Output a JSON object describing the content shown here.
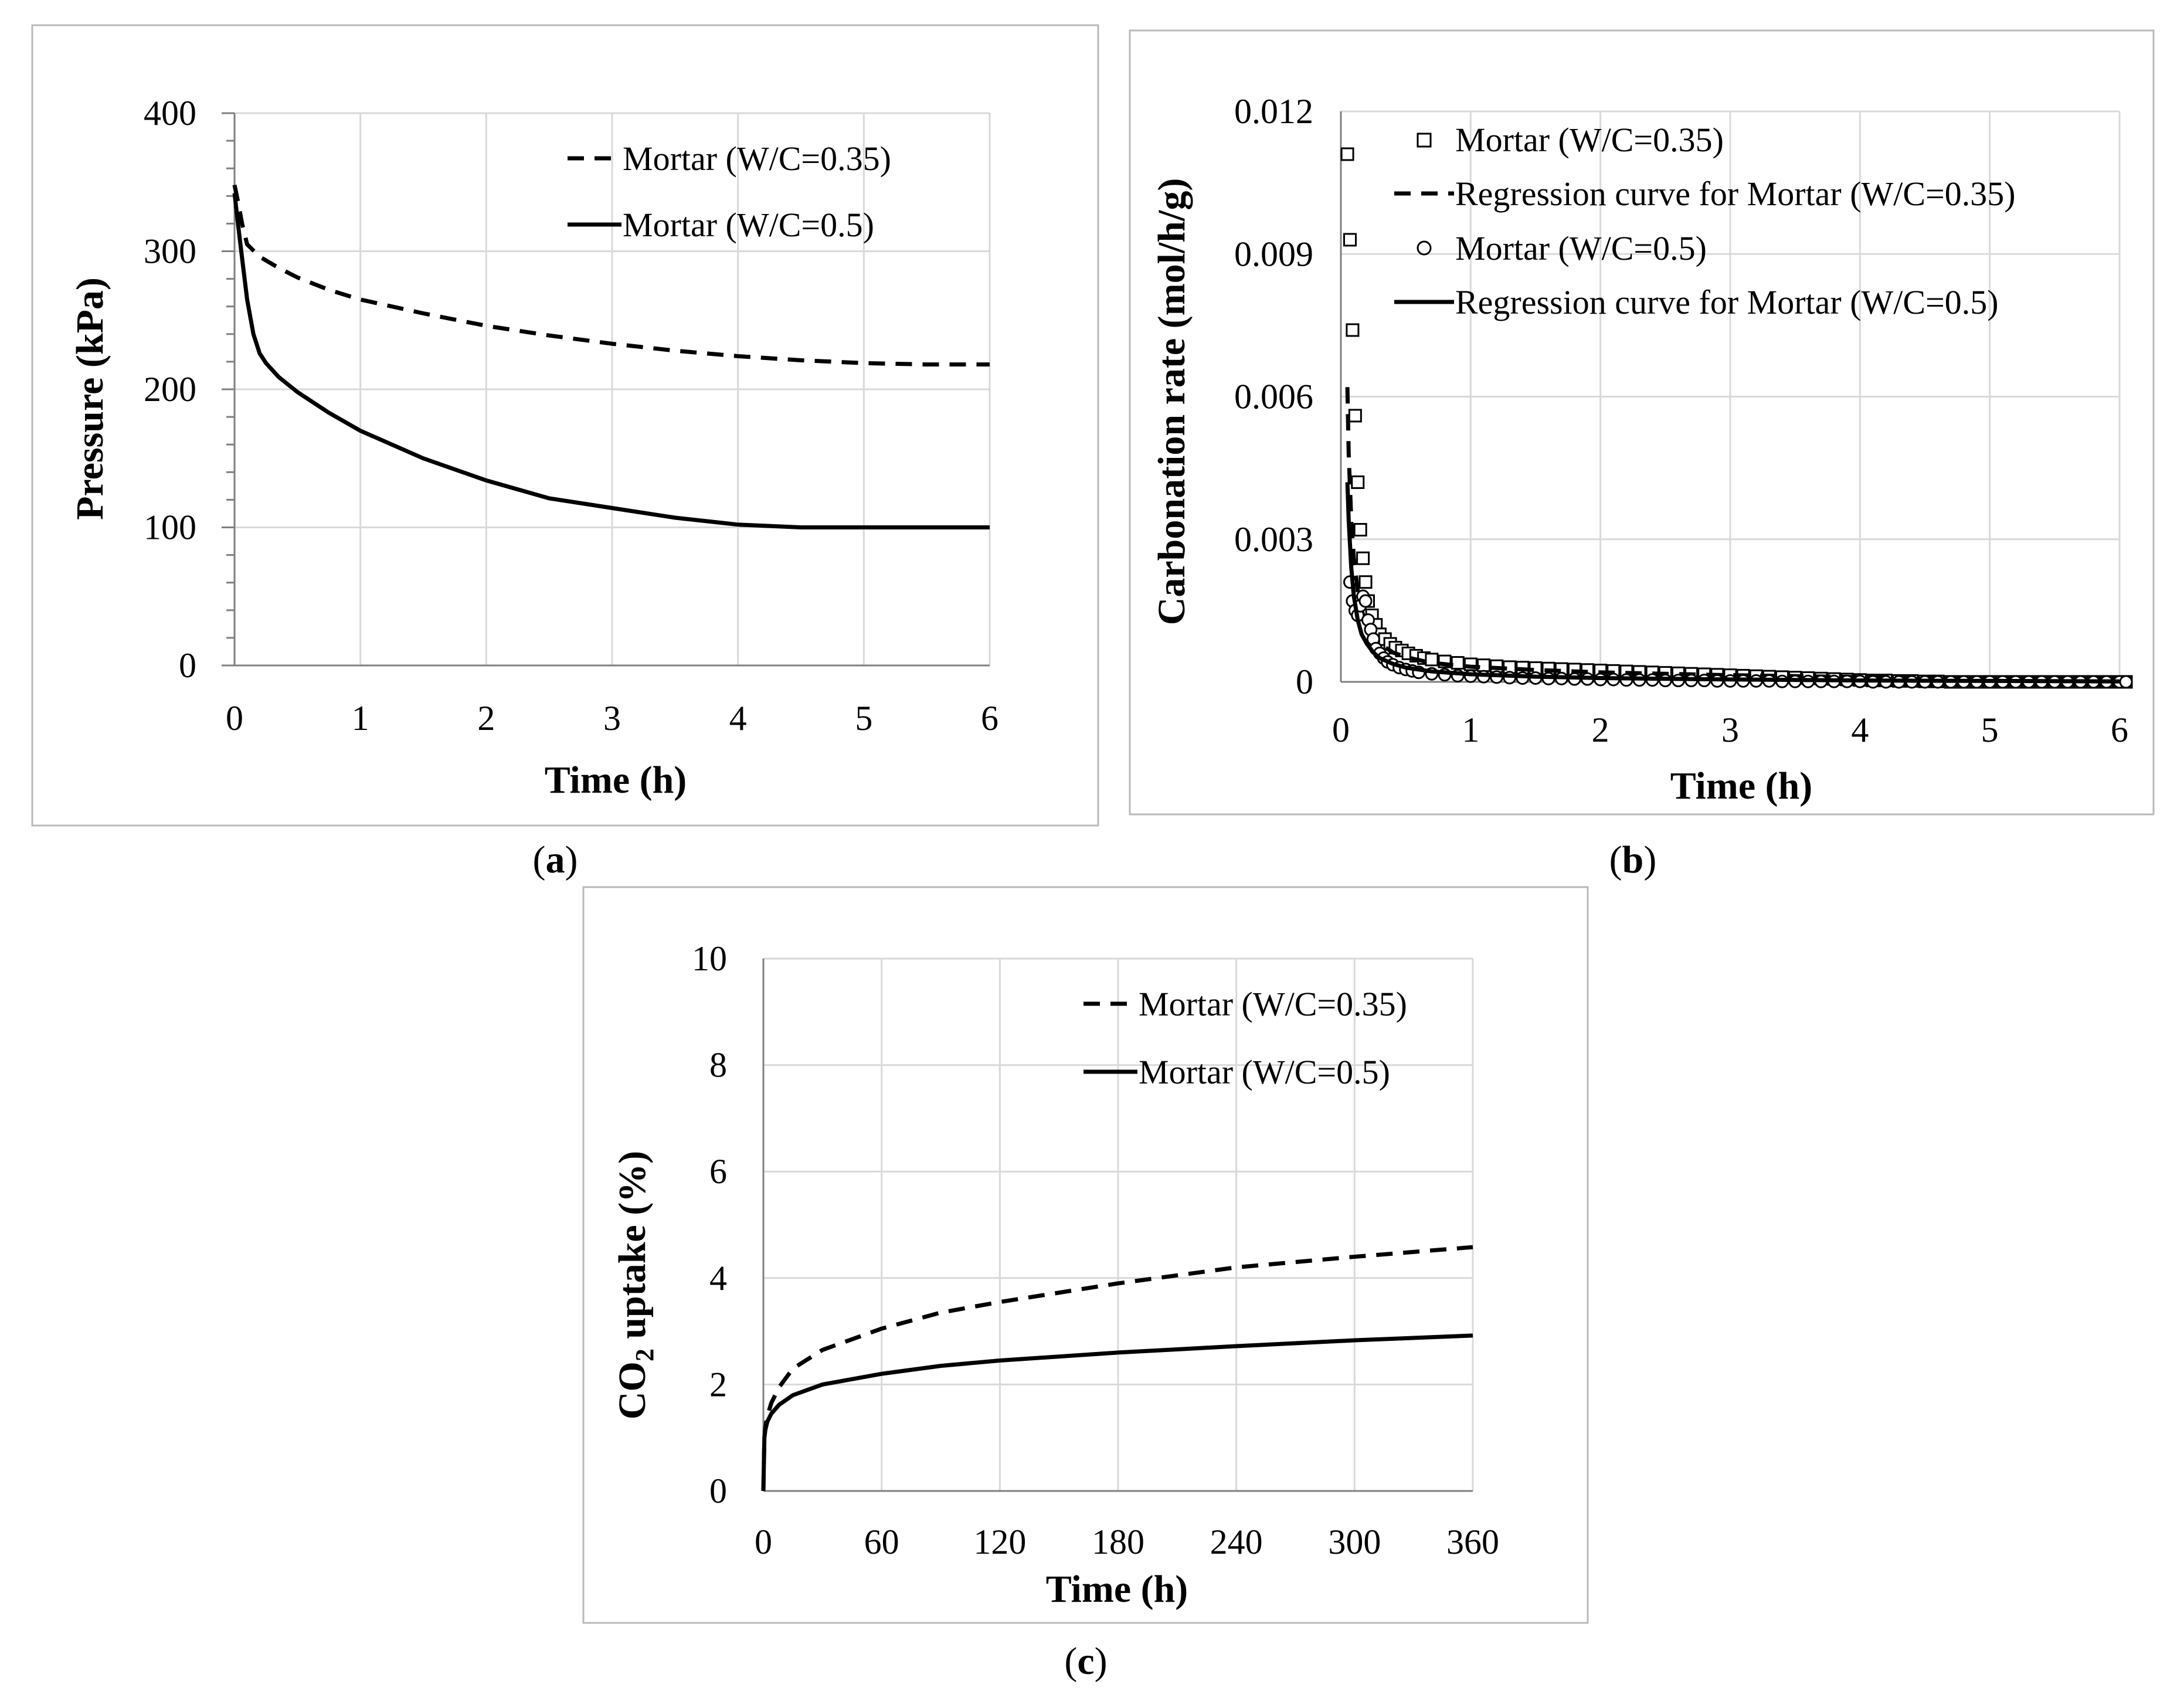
{
  "figure": {
    "captions": [
      {
        "open": "(",
        "letter": "a",
        "close": ")"
      },
      {
        "open": "(",
        "letter": "b",
        "close": ")"
      },
      {
        "open": "(",
        "letter": "c",
        "close": ")"
      }
    ]
  },
  "chart_data": [
    {
      "id": "a",
      "type": "line",
      "title": "",
      "xlabel": "Time (h)",
      "ylabel": "Pressure (kPa)",
      "xlim": [
        0,
        6
      ],
      "ylim": [
        0,
        400
      ],
      "xticks": [
        0,
        1,
        2,
        3,
        4,
        5,
        6
      ],
      "yticks": [
        0,
        100,
        200,
        300,
        400
      ],
      "grid": true,
      "legend_position": "top-right",
      "series": [
        {
          "name": "Mortar (W/C=0.35)",
          "style": "dashed",
          "x": [
            0,
            0.03,
            0.06,
            0.1,
            0.2,
            0.35,
            0.5,
            0.75,
            1,
            1.5,
            2,
            2.5,
            3,
            3.5,
            4,
            4.5,
            5,
            5.5,
            6
          ],
          "y": [
            348,
            335,
            320,
            305,
            296,
            288,
            281,
            272,
            265,
            255,
            246,
            239,
            233,
            228,
            224,
            221,
            219,
            218,
            218
          ]
        },
        {
          "name": "Mortar (W/C=0.5)",
          "style": "solid",
          "x": [
            0,
            0.03,
            0.06,
            0.1,
            0.15,
            0.2,
            0.25,
            0.35,
            0.5,
            0.75,
            1,
            1.5,
            2,
            2.5,
            3,
            3.5,
            4,
            4.5,
            4.8,
            5,
            5.5,
            6
          ],
          "y": [
            342,
            318,
            295,
            265,
            240,
            226,
            219,
            209,
            198,
            183,
            170,
            150,
            134,
            121,
            114,
            107,
            102,
            100,
            100,
            100,
            100,
            100
          ]
        }
      ]
    },
    {
      "id": "b",
      "type": "scatter",
      "title": "",
      "xlabel": "Time (h)",
      "ylabel": "Carbonation rate (mol/h/g)",
      "xlim": [
        0,
        6
      ],
      "ylim": [
        0,
        0.012
      ],
      "xticks": [
        0,
        1,
        2,
        3,
        4,
        5,
        6
      ],
      "yticks": [
        "0",
        "0.003",
        "0.006",
        "0.009",
        "0.012"
      ],
      "grid": true,
      "legend_position": "top-right",
      "series": [
        {
          "name": "Mortar (W/C=0.35)",
          "kind": "markers",
          "marker": "square",
          "x": [
            0.05,
            0.07,
            0.09,
            0.11,
            0.13,
            0.15,
            0.17,
            0.19,
            0.21,
            0.24,
            0.27,
            0.3,
            0.34,
            0.38,
            0.42,
            0.47,
            0.52,
            0.58,
            0.64,
            0.7,
            0.8,
            0.9,
            1,
            1.1,
            1.2,
            1.3,
            1.4,
            1.5,
            1.6,
            1.7,
            1.8,
            1.9,
            2,
            2.1,
            2.2,
            2.3,
            2.4,
            2.5,
            2.6,
            2.7,
            2.8,
            2.9,
            3,
            3.1,
            3.2,
            3.3,
            3.4,
            3.5,
            3.6,
            3.7,
            3.8,
            3.9,
            4,
            4.1,
            4.2,
            4.3,
            4.4,
            4.5,
            4.6,
            4.7,
            4.8,
            4.9,
            5,
            5.1,
            5.2,
            5.3,
            5.4,
            5.5,
            5.6,
            5.7,
            5.8,
            5.9,
            6,
            6.05
          ],
          "y": [
            0.0111,
            0.0093,
            0.0074,
            0.0056,
            0.0042,
            0.0032,
            0.0026,
            0.0021,
            0.0017,
            0.0014,
            0.0012,
            0.001,
            0.0009,
            0.0008,
            0.00072,
            0.00066,
            0.0006,
            0.00055,
            0.0005,
            0.00047,
            0.00043,
            0.0004,
            0.00037,
            0.00035,
            0.00033,
            0.00031,
            0.0003,
            0.00029,
            0.00028,
            0.00027,
            0.00026,
            0.00025,
            0.00024,
            0.00023,
            0.00022,
            0.00021,
            0.0002,
            0.00019,
            0.00018,
            0.00017,
            0.00016,
            0.00015,
            0.00014,
            0.00013,
            0.00012,
            0.00011,
            0.0001,
            9e-05,
            8e-05,
            7e-05,
            6e-05,
            5e-05,
            4e-05,
            3e-05,
            3e-05,
            2e-05,
            2e-05,
            1e-05,
            1e-05,
            0,
            0,
            0,
            0,
            0,
            0,
            0,
            0,
            0,
            0,
            0,
            0,
            0,
            0,
            0
          ]
        },
        {
          "name": "Regression curve for Mortar (W/C=0.35)",
          "kind": "line",
          "style": "dashed",
          "x": [
            0.05,
            0.06,
            0.08,
            0.1,
            0.13,
            0.16,
            0.2,
            0.25,
            0.3,
            0.4,
            0.5,
            0.7,
            1,
            1.5,
            2,
            3,
            4,
            5,
            6
          ],
          "y": [
            0.0062,
            0.0048,
            0.0034,
            0.0026,
            0.0019,
            0.0015,
            0.0012,
            0.00095,
            0.0008,
            0.00062,
            0.00052,
            0.0004,
            0.00032,
            0.00025,
            0.0002,
            0.00014,
            0.0001,
            7e-05,
            5e-05
          ]
        },
        {
          "name": "Mortar (W/C=0.5)",
          "kind": "markers",
          "marker": "circle",
          "x": [
            0.07,
            0.09,
            0.11,
            0.13,
            0.15,
            0.17,
            0.19,
            0.21,
            0.23,
            0.25,
            0.27,
            0.3,
            0.33,
            0.36,
            0.4,
            0.45,
            0.5,
            0.55,
            0.6,
            0.7,
            0.8,
            0.9,
            1,
            1.1,
            1.2,
            1.3,
            1.4,
            1.5,
            1.6,
            1.7,
            1.8,
            1.9,
            2,
            2.1,
            2.2,
            2.3,
            2.4,
            2.5,
            2.6,
            2.7,
            2.8,
            2.9,
            3,
            3.1,
            3.2,
            3.3,
            3.4,
            3.5,
            3.6,
            3.7,
            3.8,
            3.9,
            4,
            4.1,
            4.2,
            4.3,
            4.4,
            4.5,
            4.6,
            4.7,
            4.8,
            4.9,
            5,
            5.1,
            5.2,
            5.3,
            5.4,
            5.5,
            5.6,
            5.7,
            5.8,
            5.9,
            6,
            6.05
          ],
          "y": [
            0.0021,
            0.0017,
            0.0015,
            0.0014,
            0.0016,
            0.0018,
            0.0017,
            0.0013,
            0.0011,
            0.0009,
            0.0007,
            0.0006,
            0.0005,
            0.00042,
            0.00036,
            0.0003,
            0.00026,
            0.00023,
            0.0002,
            0.00017,
            0.00015,
            0.00013,
            0.00012,
            0.00011,
            0.0001,
            9e-05,
            8e-05,
            8e-05,
            7e-05,
            7e-05,
            6e-05,
            6e-05,
            5e-05,
            5e-05,
            4e-05,
            4e-05,
            4e-05,
            3e-05,
            3e-05,
            3e-05,
            3e-05,
            2e-05,
            2e-05,
            2e-05,
            2e-05,
            2e-05,
            1e-05,
            1e-05,
            1e-05,
            1e-05,
            1e-05,
            1e-05,
            1e-05,
            0,
            0,
            0,
            0,
            0,
            0,
            0,
            0,
            0,
            0,
            0,
            0,
            0,
            0,
            0,
            0,
            0,
            0,
            0,
            0,
            0
          ]
        },
        {
          "name": "Regression curve for Mortar (W/C=0.5)",
          "kind": "line",
          "style": "solid",
          "x": [
            0.05,
            0.06,
            0.08,
            0.1,
            0.13,
            0.16,
            0.2,
            0.25,
            0.3,
            0.4,
            0.5,
            0.7,
            1,
            1.5,
            2,
            3,
            4,
            5,
            6
          ],
          "y": [
            0.0042,
            0.0034,
            0.0024,
            0.0018,
            0.0013,
            0.001,
            0.0008,
            0.00062,
            0.0005,
            0.00038,
            0.0003,
            0.00022,
            0.00016,
            0.00011,
            8e-05,
            5e-05,
            3e-05,
            2e-05,
            1e-05
          ]
        }
      ]
    },
    {
      "id": "c",
      "type": "line",
      "title": "",
      "xlabel": "Time (h)",
      "ylabel_main": "CO",
      "ylabel_sub": "2",
      "ylabel_rest": " uptake (%)",
      "xlim": [
        0,
        360
      ],
      "ylim": [
        0,
        10
      ],
      "xticks": [
        0,
        60,
        120,
        180,
        240,
        300,
        360
      ],
      "yticks": [
        0,
        2,
        4,
        6,
        8,
        10
      ],
      "grid": true,
      "legend_position": "top-right",
      "series": [
        {
          "name": "Mortar (W/C=0.35)",
          "style": "dashed",
          "x": [
            0,
            0.5,
            1,
            2,
            4,
            8,
            15,
            30,
            60,
            90,
            120,
            180,
            240,
            300,
            360
          ],
          "y": [
            0,
            1.0,
            1.2,
            1.4,
            1.65,
            1.95,
            2.3,
            2.65,
            3.05,
            3.35,
            3.55,
            3.9,
            4.2,
            4.4,
            4.58
          ]
        },
        {
          "name": "Mortar (W/C=0.5)",
          "style": "solid",
          "x": [
            0,
            0.5,
            1,
            2,
            4,
            8,
            15,
            30,
            60,
            90,
            120,
            180,
            240,
            300,
            360
          ],
          "y": [
            0,
            1.0,
            1.15,
            1.3,
            1.45,
            1.62,
            1.8,
            2.0,
            2.2,
            2.35,
            2.45,
            2.6,
            2.72,
            2.83,
            2.92
          ]
        }
      ]
    }
  ]
}
